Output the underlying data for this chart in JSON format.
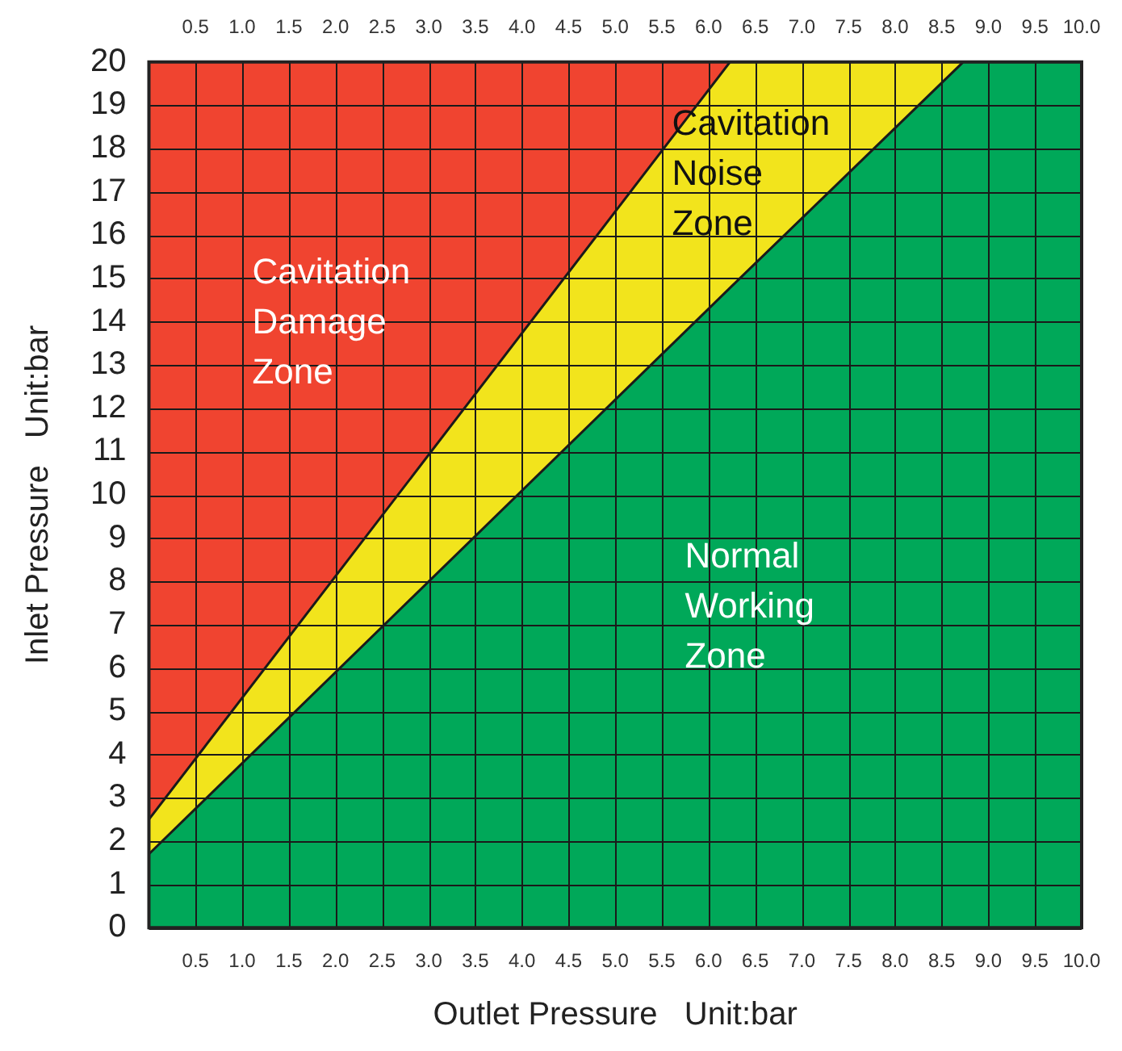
{
  "chart_data": {
    "type": "area",
    "xlabel": "Outlet Pressure   Unit:bar",
    "ylabel": "Inlet Pressure   Unit:bar",
    "x": [
      0,
      6.23,
      8.73,
      10
    ],
    "series": [
      {
        "name": "Normal Working Zone",
        "color": "#00a859",
        "values": [
          1.7,
          14.78,
          20,
          20
        ]
      },
      {
        "name": "Cavitation Noise Zone",
        "color": "#f2e41c",
        "values": [
          2.5,
          20,
          20,
          20
        ]
      },
      {
        "name": "Cavitation Damage Zone",
        "color": "#f04430",
        "values": [
          20,
          20,
          20,
          20
        ]
      }
    ],
    "xlim": [
      0,
      10
    ],
    "ylim": [
      0,
      20
    ],
    "xticks": [
      {
        "value": 0,
        "label": null
      },
      {
        "value": 0.5,
        "label": "0.5"
      },
      {
        "value": 1,
        "label": "1.0"
      },
      {
        "value": 1.5,
        "label": "1.5"
      },
      {
        "value": 2,
        "label": "2.0"
      },
      {
        "value": 2.5,
        "label": "2.5"
      },
      {
        "value": 3,
        "label": "3.0"
      },
      {
        "value": 3.5,
        "label": "3.5"
      },
      {
        "value": 4,
        "label": "4.0"
      },
      {
        "value": 4.5,
        "label": "4.5"
      },
      {
        "value": 5,
        "label": "5.0"
      },
      {
        "value": 5.5,
        "label": "5.5"
      },
      {
        "value": 6,
        "label": "6.0"
      },
      {
        "value": 6.5,
        "label": "6.5"
      },
      {
        "value": 7,
        "label": "7.0"
      },
      {
        "value": 7.5,
        "label": "7.5"
      },
      {
        "value": 8,
        "label": "8.0"
      },
      {
        "value": 8.5,
        "label": "8.5"
      },
      {
        "value": 9,
        "label": "9.0"
      },
      {
        "value": 9.5,
        "label": "9.5"
      },
      {
        "value": 10,
        "label": "10.0"
      }
    ],
    "x2lim": [
      0,
      10
    ],
    "x2ticks": [
      {
        "value": 0,
        "label": null
      },
      {
        "value": 0.5,
        "label": "0.5"
      },
      {
        "value": 1,
        "label": "1.0"
      },
      {
        "value": 1.5,
        "label": "1.5"
      },
      {
        "value": 2,
        "label": "2.0"
      },
      {
        "value": 2.5,
        "label": "2.5"
      },
      {
        "value": 3,
        "label": "3.0"
      },
      {
        "value": 3.5,
        "label": "3.5"
      },
      {
        "value": 4,
        "label": "4.0"
      },
      {
        "value": 4.5,
        "label": "4.5"
      },
      {
        "value": 5,
        "label": "5.0"
      },
      {
        "value": 5.5,
        "label": "5.5"
      },
      {
        "value": 6,
        "label": "6.0"
      },
      {
        "value": 6.5,
        "label": "6.5"
      },
      {
        "value": 7,
        "label": "7.0"
      },
      {
        "value": 7.5,
        "label": "7.5"
      },
      {
        "value": 8,
        "label": "8.0"
      },
      {
        "value": 8.5,
        "label": "8.5"
      },
      {
        "value": 9,
        "label": "9.0"
      },
      {
        "value": 9.5,
        "label": "9.5"
      },
      {
        "value": 10,
        "label": "10.0"
      }
    ],
    "yticks": [
      0,
      1,
      2,
      3,
      4,
      5,
      6,
      7,
      8,
      9,
      10,
      11,
      12,
      13,
      14,
      15,
      16,
      17,
      18,
      19,
      20
    ],
    "grid": true,
    "legend": false
  }
}
